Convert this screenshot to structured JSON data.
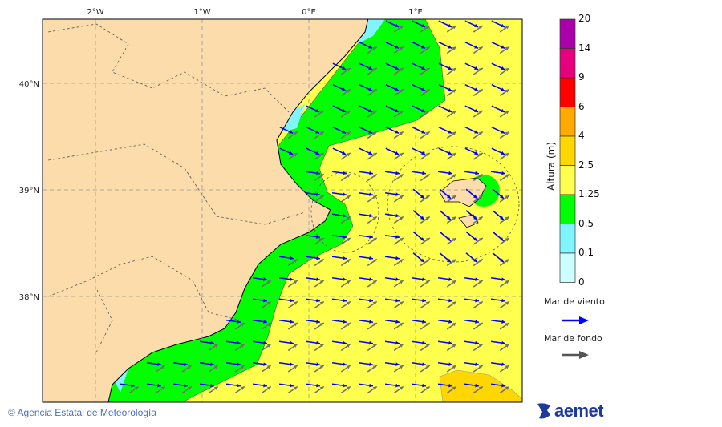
{
  "map": {
    "lon_labels": [
      "2°W",
      "1°W",
      "0°E",
      "1°E"
    ],
    "lat_labels": [
      "40°N",
      "39°N",
      "38°N"
    ],
    "colors": {
      "land": "#fbdcaa",
      "sea_yellow": "#ffff4d",
      "sea_green": "#00ff00",
      "sea_cyan": "#80f4ff",
      "sea_orange": "#ffd700",
      "wind_arrow": "#0000ff",
      "swell_arrow": "#707070"
    },
    "wind_sea_direction": "east-southeast",
    "swell_direction": "northeast"
  },
  "colorbar": {
    "title": "Altura (m)",
    "levels": [
      "20",
      "14",
      "9",
      "6",
      "4",
      "2.5",
      "1.25",
      "0.5",
      "0.1",
      "0"
    ],
    "colors": [
      "#aa00aa",
      "#e6007e",
      "#ff0000",
      "#ffaa00",
      "#ffd700",
      "#ffff4d",
      "#00ff00",
      "#80f4ff",
      "#ccffff"
    ]
  },
  "legend": {
    "wind_sea_label": "Mar de viento",
    "swell_label": "Mar de fondo"
  },
  "footer": {
    "copyright": "© Agencia Estatal de Meteorología",
    "logo_text": "aemet"
  }
}
